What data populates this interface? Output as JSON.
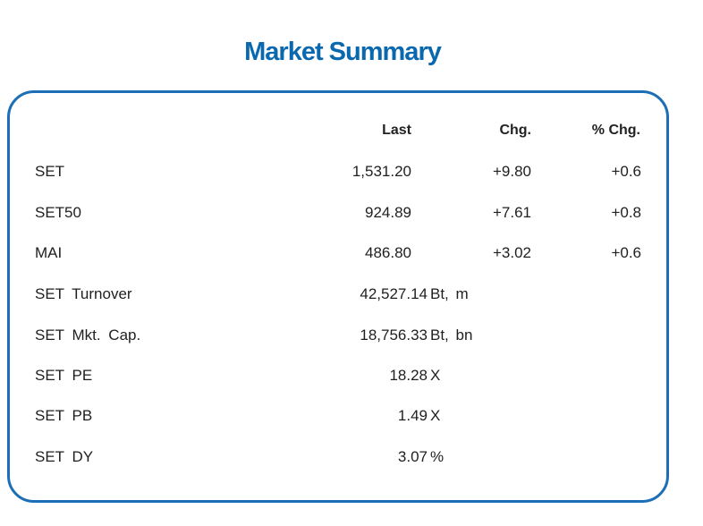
{
  "title": "Market Summary",
  "columns": {
    "last": "Last",
    "chg": "Chg.",
    "pct": "% Chg."
  },
  "indices": [
    {
      "label": "SET",
      "last": "1,531.20",
      "chg": "+9.80",
      "pct": "+0.6"
    },
    {
      "label": "SET50",
      "last": "924.89",
      "chg": "+7.61",
      "pct": "+0.8"
    },
    {
      "label": "MAI",
      "last": "486.80",
      "chg": "+3.02",
      "pct": "+0.6"
    }
  ],
  "stats": [
    {
      "label": "SET Turnover",
      "value": "42,527.14",
      "unit": "Bt, m"
    },
    {
      "label": "SET Mkt. Cap.",
      "value": "18,756.33",
      "unit": "Bt, bn"
    },
    {
      "label": "SET PE",
      "value": "18.28",
      "unit": "X"
    },
    {
      "label": "SET PB",
      "value": "1.49",
      "unit": "X"
    },
    {
      "label": "SET DY",
      "value": "3.07",
      "unit": "%"
    }
  ],
  "colors": {
    "accent": "#0a68ae",
    "border": "#1c6fb6"
  }
}
